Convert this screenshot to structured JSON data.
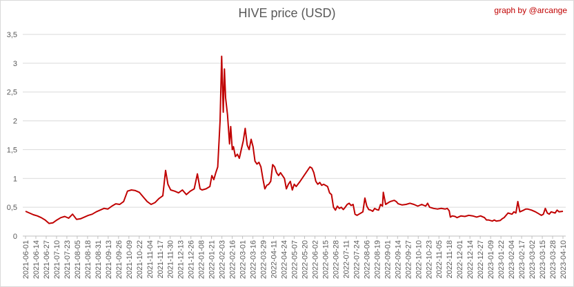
{
  "chart_data": {
    "type": "line",
    "title": "HIVE price (USD)",
    "credit": "graph by @arcange",
    "xlabel": "",
    "ylabel": "",
    "ylim": [
      0,
      3.5
    ],
    "yticks": [
      "0",
      "0,5",
      "1",
      "1,5",
      "2",
      "2,5",
      "3",
      "3,5"
    ],
    "x_ticks": [
      "2021-06-01",
      "2021-06-14",
      "2021-06-27",
      "2021-07-10",
      "2021-07-23",
      "2021-08-05",
      "2021-08-18",
      "2021-08-31",
      "2021-09-13",
      "2021-09-26",
      "2021-10-09",
      "2021-10-22",
      "2021-11-04",
      "2021-11-17",
      "2021-11-30",
      "2021-12-13",
      "2021-12-26",
      "2022-01-08",
      "2022-01-21",
      "2022-02-03",
      "2022-02-16",
      "2022-03-01",
      "2022-03-16",
      "2022-03-29",
      "2022-04-11",
      "2022-04-24",
      "2022-05-07",
      "2022-05-20",
      "2022-06-02",
      "2022-06-15",
      "2022-06-28",
      "2022-07-11",
      "2022-07-24",
      "2022-08-06",
      "2022-08-19",
      "2022-09-01",
      "2022-09-14",
      "2022-09-27",
      "2022-10-10",
      "2022-10-23",
      "2022-11-05",
      "2022-11-18",
      "2022-12-01",
      "2022-12-14",
      "2022-12-27",
      "2023-01-09",
      "2023-01-22",
      "2023-02-04",
      "2023-02-17",
      "2023-03-02",
      "2023-03-15",
      "2023-03-28",
      "2023-04-10"
    ],
    "grid": true,
    "series": [
      {
        "name": "",
        "color": "#c00000",
        "points": [
          [
            0,
            0.43
          ],
          [
            1,
            0.4
          ],
          [
            2,
            0.37
          ],
          [
            3,
            0.35
          ],
          [
            4,
            0.32
          ],
          [
            5,
            0.28
          ],
          [
            6,
            0.22
          ],
          [
            7,
            0.23
          ],
          [
            8,
            0.28
          ],
          [
            9,
            0.32
          ],
          [
            10,
            0.34
          ],
          [
            11,
            0.31
          ],
          [
            12,
            0.38
          ],
          [
            13,
            0.29
          ],
          [
            14,
            0.3
          ],
          [
            15,
            0.33
          ],
          [
            16,
            0.36
          ],
          [
            17,
            0.38
          ],
          [
            18,
            0.42
          ],
          [
            19,
            0.45
          ],
          [
            20,
            0.48
          ],
          [
            21,
            0.47
          ],
          [
            22,
            0.52
          ],
          [
            23,
            0.56
          ],
          [
            24,
            0.55
          ],
          [
            25,
            0.6
          ],
          [
            26,
            0.78
          ],
          [
            27,
            0.8
          ],
          [
            28,
            0.79
          ],
          [
            29,
            0.76
          ],
          [
            30,
            0.68
          ],
          [
            31,
            0.6
          ],
          [
            32,
            0.55
          ],
          [
            33,
            0.58
          ],
          [
            34,
            0.65
          ],
          [
            35,
            0.7
          ],
          [
            35.7,
            1.14
          ],
          [
            36.3,
            0.9
          ],
          [
            37,
            0.8
          ],
          [
            38,
            0.78
          ],
          [
            39,
            0.75
          ],
          [
            40,
            0.8
          ],
          [
            41,
            0.72
          ],
          [
            42,
            0.78
          ],
          [
            43,
            0.82
          ],
          [
            43.8,
            1.08
          ],
          [
            44.5,
            0.82
          ],
          [
            45,
            0.8
          ],
          [
            46,
            0.82
          ],
          [
            47,
            0.86
          ],
          [
            47.5,
            1.05
          ],
          [
            48,
            0.98
          ],
          [
            48.5,
            1.1
          ],
          [
            49,
            1.2
          ],
          [
            49.6,
            2.0
          ],
          [
            50,
            3.12
          ],
          [
            50.4,
            2.15
          ],
          [
            50.7,
            2.9
          ],
          [
            51,
            2.4
          ],
          [
            51.5,
            2.1
          ],
          [
            52,
            1.6
          ],
          [
            52.3,
            1.9
          ],
          [
            52.7,
            1.5
          ],
          [
            53,
            1.55
          ],
          [
            53.5,
            1.38
          ],
          [
            54,
            1.42
          ],
          [
            54.5,
            1.35
          ],
          [
            55,
            1.5
          ],
          [
            55.5,
            1.65
          ],
          [
            56,
            1.87
          ],
          [
            56.5,
            1.58
          ],
          [
            57,
            1.5
          ],
          [
            57.5,
            1.68
          ],
          [
            58,
            1.55
          ],
          [
            58.5,
            1.3
          ],
          [
            59,
            1.25
          ],
          [
            59.5,
            1.28
          ],
          [
            60,
            1.2
          ],
          [
            60.5,
            1.0
          ],
          [
            61,
            0.82
          ],
          [
            61.5,
            0.88
          ],
          [
            62,
            0.9
          ],
          [
            62.5,
            0.95
          ],
          [
            63,
            1.24
          ],
          [
            63.5,
            1.2
          ],
          [
            64,
            1.1
          ],
          [
            64.5,
            1.05
          ],
          [
            65,
            1.1
          ],
          [
            66,
            1.0
          ],
          [
            66.5,
            0.82
          ],
          [
            67,
            0.9
          ],
          [
            67.5,
            0.95
          ],
          [
            68,
            0.8
          ],
          [
            68.5,
            0.9
          ],
          [
            69,
            0.86
          ],
          [
            70,
            0.95
          ],
          [
            71,
            1.05
          ],
          [
            72,
            1.15
          ],
          [
            72.5,
            1.2
          ],
          [
            73,
            1.18
          ],
          [
            73.5,
            1.1
          ],
          [
            74,
            0.95
          ],
          [
            74.5,
            0.9
          ],
          [
            75,
            0.93
          ],
          [
            75.5,
            0.88
          ],
          [
            76,
            0.9
          ],
          [
            77,
            0.86
          ],
          [
            77.5,
            0.75
          ],
          [
            78,
            0.72
          ],
          [
            78.5,
            0.5
          ],
          [
            79,
            0.45
          ],
          [
            79.5,
            0.52
          ],
          [
            80,
            0.48
          ],
          [
            80.5,
            0.5
          ],
          [
            81,
            0.46
          ],
          [
            81.5,
            0.5
          ],
          [
            82,
            0.55
          ],
          [
            82.5,
            0.57
          ],
          [
            83,
            0.53
          ],
          [
            83.5,
            0.55
          ],
          [
            84,
            0.38
          ],
          [
            84.5,
            0.36
          ],
          [
            85,
            0.38
          ],
          [
            85.5,
            0.4
          ],
          [
            86,
            0.42
          ],
          [
            86.5,
            0.66
          ],
          [
            87,
            0.52
          ],
          [
            87.5,
            0.46
          ],
          [
            88,
            0.45
          ],
          [
            88.5,
            0.43
          ],
          [
            89,
            0.48
          ],
          [
            89.5,
            0.46
          ],
          [
            90,
            0.45
          ],
          [
            90.5,
            0.55
          ],
          [
            91,
            0.52
          ],
          [
            91.2,
            0.76
          ],
          [
            91.8,
            0.55
          ],
          [
            92.5,
            0.58
          ],
          [
            93,
            0.6
          ],
          [
            94,
            0.62
          ],
          [
            94.5,
            0.6
          ],
          [
            95,
            0.56
          ],
          [
            96,
            0.54
          ],
          [
            97,
            0.55
          ],
          [
            98,
            0.57
          ],
          [
            99,
            0.55
          ],
          [
            100,
            0.52
          ],
          [
            101,
            0.55
          ],
          [
            102,
            0.52
          ],
          [
            102.5,
            0.57
          ],
          [
            103,
            0.5
          ],
          [
            104,
            0.48
          ],
          [
            105,
            0.47
          ],
          [
            106,
            0.48
          ],
          [
            107,
            0.47
          ],
          [
            107.5,
            0.48
          ],
          [
            108,
            0.44
          ],
          [
            108.3,
            0.33
          ],
          [
            108.8,
            0.35
          ],
          [
            109.5,
            0.34
          ],
          [
            110,
            0.32
          ],
          [
            111,
            0.35
          ],
          [
            112,
            0.34
          ],
          [
            113,
            0.36
          ],
          [
            114,
            0.35
          ],
          [
            115,
            0.33
          ],
          [
            116,
            0.35
          ],
          [
            117,
            0.32
          ],
          [
            117.5,
            0.28
          ],
          [
            118,
            0.28
          ],
          [
            119,
            0.26
          ],
          [
            119.5,
            0.28
          ],
          [
            120,
            0.26
          ],
          [
            121,
            0.27
          ],
          [
            121.5,
            0.3
          ],
          [
            122,
            0.32
          ],
          [
            123,
            0.4
          ],
          [
            124,
            0.38
          ],
          [
            124.5,
            0.42
          ],
          [
            125,
            0.4
          ],
          [
            125.5,
            0.6
          ],
          [
            126,
            0.42
          ],
          [
            127,
            0.45
          ],
          [
            127.5,
            0.47
          ],
          [
            128,
            0.47
          ],
          [
            129,
            0.45
          ],
          [
            130,
            0.42
          ],
          [
            131,
            0.38
          ],
          [
            131.5,
            0.36
          ],
          [
            132,
            0.38
          ],
          [
            132.5,
            0.48
          ],
          [
            133,
            0.4
          ],
          [
            133.5,
            0.38
          ],
          [
            134,
            0.42
          ],
          [
            135,
            0.4
          ],
          [
            135.5,
            0.45
          ],
          [
            136,
            0.42
          ],
          [
            137,
            0.43
          ]
        ]
      }
    ]
  }
}
